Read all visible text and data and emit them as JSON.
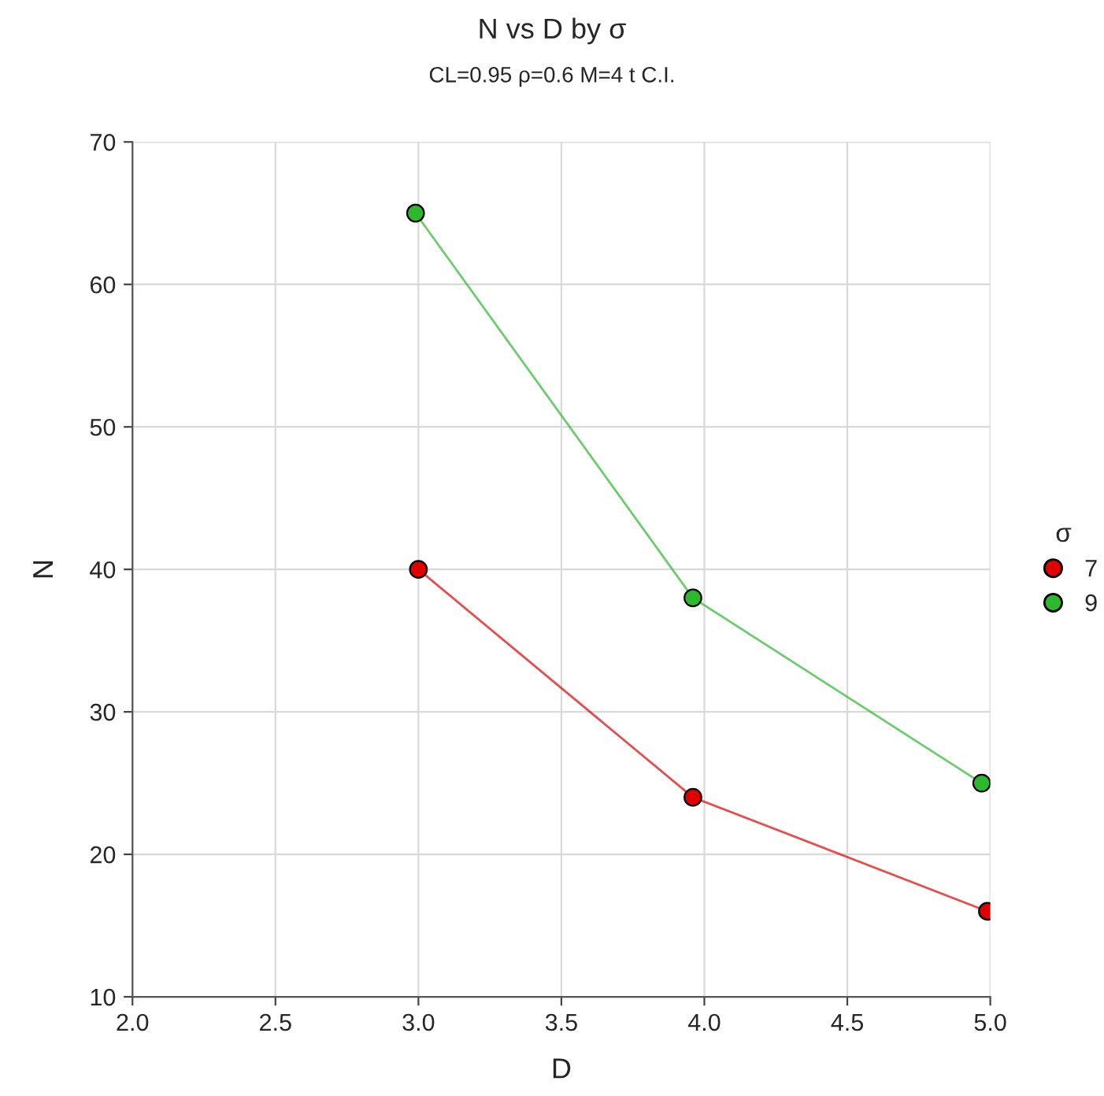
{
  "chart_data": {
    "type": "line",
    "title": "N vs D by σ",
    "subtitle": "CL=0.95 ρ=0.6 M=4 t C.I.",
    "xlabel": "D",
    "ylabel": "N",
    "legend_title": "σ",
    "series": [
      {
        "name": "7",
        "color": "#e00000",
        "x": [
          3.0,
          3.96,
          4.99
        ],
        "values": [
          40,
          24,
          16
        ]
      },
      {
        "name": "9",
        "color": "#2db82d",
        "x": [
          2.99,
          3.96,
          4.97
        ],
        "values": [
          65,
          38,
          25
        ]
      }
    ],
    "xlim": [
      2.0,
      5.0
    ],
    "xticks": [
      {
        "value": 2.0,
        "label": "2.0"
      },
      {
        "value": 2.5,
        "label": "2.5"
      },
      {
        "value": 3.0,
        "label": "3.0"
      },
      {
        "value": 3.5,
        "label": "3.5"
      },
      {
        "value": 4.0,
        "label": "4.0"
      },
      {
        "value": 4.5,
        "label": "4.5"
      },
      {
        "value": 5.0,
        "label": "5.0"
      }
    ],
    "ylim": [
      10,
      70
    ],
    "yticks": [
      10,
      20,
      30,
      40,
      50,
      60,
      70
    ],
    "grid": true,
    "legend": "right",
    "marker": "circle",
    "line_style": "solid"
  }
}
